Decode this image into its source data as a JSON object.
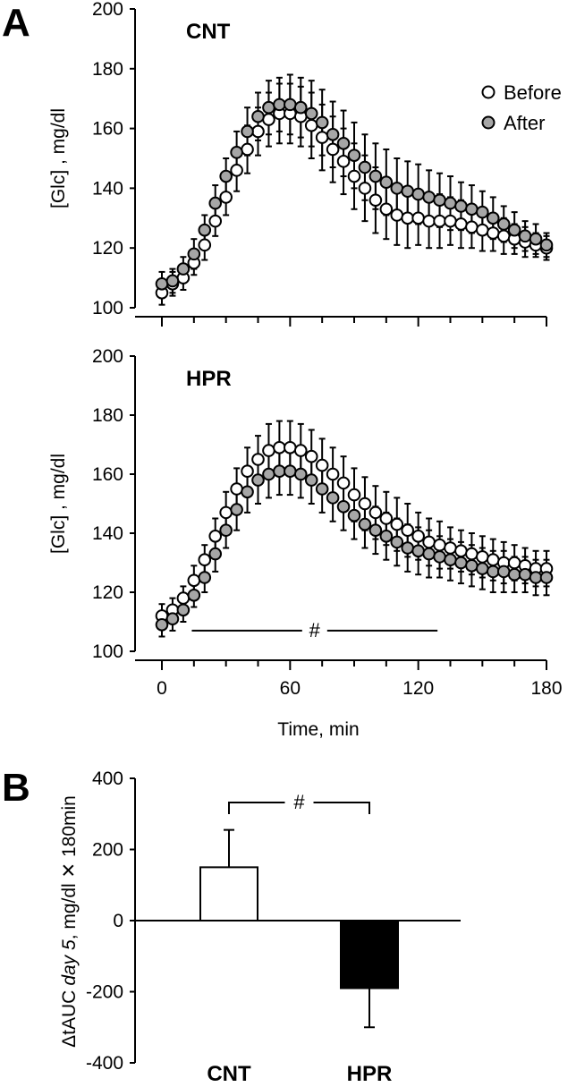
{
  "figure": {
    "panel_a_letter": "A",
    "panel_b_letter": "B"
  },
  "chart_data": [
    {
      "type": "scatter",
      "title": "CNT",
      "ylabel": "[Glc] , mg/dl",
      "xlabel": "",
      "xlim": [
        0,
        180
      ],
      "ylim": [
        100,
        200
      ],
      "yticks": [
        100,
        120,
        140,
        160,
        180,
        200
      ],
      "x_tick_values": [
        0,
        60,
        120,
        180
      ],
      "x_tick_labels": [],
      "x": [
        0,
        5,
        10,
        15,
        20,
        25,
        30,
        35,
        40,
        45,
        50,
        55,
        60,
        65,
        70,
        75,
        80,
        85,
        90,
        95,
        100,
        105,
        110,
        115,
        120,
        125,
        130,
        135,
        140,
        145,
        150,
        155,
        160,
        165,
        170,
        175,
        180
      ],
      "series": [
        {
          "name": "Before",
          "marker": "open-circle",
          "fill": "#ffffff",
          "values": [
            105,
            108,
            110,
            115,
            121,
            129,
            137,
            146,
            153,
            159,
            163,
            165,
            165,
            164,
            161,
            157,
            153,
            149,
            144,
            140,
            136,
            133,
            131,
            130,
            130,
            129,
            129,
            129,
            128,
            127,
            126,
            125,
            124,
            123,
            122,
            121,
            120
          ],
          "errors": [
            4,
            4,
            4,
            4,
            5,
            5,
            6,
            7,
            8,
            8,
            9,
            10,
            10,
            10,
            11,
            11,
            11,
            11,
            11,
            11,
            11,
            10,
            10,
            10,
            9,
            9,
            9,
            8,
            8,
            7,
            7,
            6,
            6,
            5,
            5,
            4,
            4
          ]
        },
        {
          "name": "After",
          "marker": "filled-circle",
          "fill": "#a6a6a6",
          "values": [
            108,
            109,
            113,
            118,
            126,
            135,
            144,
            152,
            159,
            164,
            167,
            168,
            168,
            167,
            165,
            162,
            158,
            155,
            151,
            147,
            144,
            142,
            140,
            139,
            138,
            137,
            136,
            135,
            134,
            133,
            132,
            130,
            128,
            126,
            124,
            123,
            121
          ],
          "errors": [
            4,
            4,
            4,
            5,
            5,
            6,
            6,
            7,
            8,
            8,
            9,
            9,
            10,
            10,
            11,
            11,
            11,
            11,
            11,
            11,
            11,
            11,
            10,
            10,
            10,
            9,
            9,
            9,
            8,
            8,
            7,
            7,
            6,
            6,
            5,
            5,
            4
          ]
        }
      ]
    },
    {
      "type": "scatter",
      "title": "HPR",
      "ylabel": "[Glc] , mg/dl",
      "xlabel": "Time, min",
      "xlim": [
        0,
        180
      ],
      "ylim": [
        100,
        200
      ],
      "yticks": [
        100,
        120,
        140,
        160,
        180,
        200
      ],
      "x_tick_values": [
        0,
        60,
        120,
        180
      ],
      "x_tick_labels": [
        "0",
        "60",
        "120",
        "180"
      ],
      "x": [
        0,
        5,
        10,
        15,
        20,
        25,
        30,
        35,
        40,
        45,
        50,
        55,
        60,
        65,
        70,
        75,
        80,
        85,
        90,
        95,
        100,
        105,
        110,
        115,
        120,
        125,
        130,
        135,
        140,
        145,
        150,
        155,
        160,
        165,
        170,
        175,
        180
      ],
      "series": [
        {
          "name": "Before",
          "marker": "open-circle",
          "fill": "#ffffff",
          "values": [
            112,
            114,
            118,
            124,
            131,
            139,
            147,
            155,
            161,
            165,
            168,
            169,
            169,
            168,
            166,
            163,
            160,
            157,
            153,
            150,
            147,
            145,
            143,
            141,
            139,
            137,
            136,
            135,
            134,
            133,
            132,
            131,
            130,
            130,
            129,
            128,
            128
          ],
          "errors": [
            4,
            4,
            4,
            5,
            5,
            6,
            7,
            7,
            8,
            8,
            9,
            9,
            9,
            9,
            9,
            9,
            9,
            9,
            9,
            9,
            9,
            9,
            9,
            9,
            8,
            8,
            8,
            7,
            7,
            7,
            7,
            7,
            7,
            6,
            6,
            6,
            6
          ]
        },
        {
          "name": "After",
          "marker": "filled-circle",
          "fill": "#a6a6a6",
          "values": [
            109,
            111,
            114,
            119,
            125,
            133,
            141,
            148,
            154,
            158,
            160,
            161,
            161,
            160,
            158,
            155,
            152,
            149,
            146,
            143,
            141,
            139,
            137,
            135,
            134,
            133,
            132,
            131,
            130,
            129,
            128,
            127,
            127,
            126,
            126,
            125,
            125
          ],
          "errors": [
            4,
            4,
            4,
            4,
            5,
            6,
            6,
            7,
            7,
            8,
            8,
            8,
            8,
            8,
            8,
            8,
            8,
            8,
            8,
            8,
            8,
            8,
            8,
            8,
            8,
            8,
            7,
            7,
            7,
            7,
            7,
            7,
            7,
            6,
            6,
            6,
            6
          ]
        }
      ],
      "annotation": {
        "text": "#",
        "x_start": 14,
        "x_end": 129,
        "y": 107
      }
    },
    {
      "type": "bar",
      "ylabel_prefix": "ΔtAUC",
      "ylabel_italic": "day 5",
      "ylabel_suffix": ", mg/dl ✕ 180min",
      "categories": [
        "CNT",
        "HPR"
      ],
      "values": [
        150,
        -190
      ],
      "errors": [
        105,
        110
      ],
      "fills": [
        "#ffffff",
        "#000000"
      ],
      "ylim": [
        -400,
        400
      ],
      "yticks": [
        -400,
        -200,
        0,
        200,
        400
      ],
      "annotation": {
        "text": "#",
        "between": [
          "CNT",
          "HPR"
        ]
      }
    }
  ]
}
